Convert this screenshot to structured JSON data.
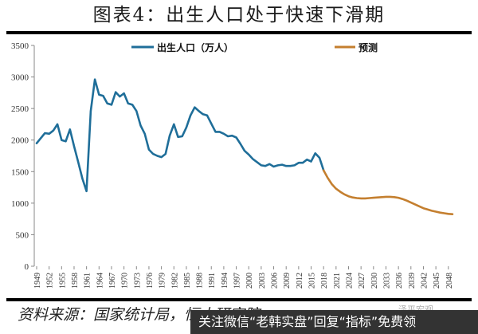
{
  "header": {
    "title": "图表4：出生人口处于快速下滑期"
  },
  "footer": {
    "source": "资料来源：国家统计局，恒大研究院",
    "faint_watermark": "泽平宏观",
    "banner_text": "关注微信“老韩实盘”回复“指标”免费领"
  },
  "colors": {
    "actual": "#1f6e99",
    "forecast": "#c47f2f"
  },
  "chart_data": {
    "type": "line",
    "title": "图表4：出生人口处于快速下滑期",
    "xlabel": "",
    "ylabel": "",
    "ylim": [
      0,
      3500
    ],
    "yticks": [
      0,
      500,
      1000,
      1500,
      2000,
      2500,
      3000,
      3500
    ],
    "xticks": [
      "1949",
      "1952",
      "1955",
      "1958",
      "1961",
      "1964",
      "1967",
      "1970",
      "1973",
      "1976",
      "1979",
      "1982",
      "1985",
      "1988",
      "1991",
      "1994",
      "1997",
      "2000",
      "2003",
      "2006",
      "2009",
      "2012",
      "2015",
      "2018",
      "2021",
      "2024",
      "2027",
      "2030",
      "2033",
      "2036",
      "2039",
      "2042",
      "2045",
      "2048"
    ],
    "xlim": [
      1949,
      2050
    ],
    "grid": false,
    "legend_position": "top",
    "series": [
      {
        "name": "出生人口（万人）",
        "color": "#1f6e99",
        "x": [
          1949,
          1950,
          1951,
          1952,
          1953,
          1954,
          1955,
          1956,
          1957,
          1958,
          1959,
          1960,
          1961,
          1962,
          1963,
          1964,
          1965,
          1966,
          1967,
          1968,
          1969,
          1970,
          1971,
          1972,
          1973,
          1974,
          1975,
          1976,
          1977,
          1978,
          1979,
          1980,
          1981,
          1982,
          1983,
          1984,
          1985,
          1986,
          1987,
          1988,
          1989,
          1990,
          1991,
          1992,
          1993,
          1994,
          1995,
          1996,
          1997,
          1998,
          1999,
          2000,
          2001,
          2002,
          2003,
          2004,
          2005,
          2006,
          2007,
          2008,
          2009,
          2010,
          2011,
          2012,
          2013,
          2014,
          2015,
          2016,
          2017,
          2018
        ],
        "values": [
          1950,
          2030,
          2110,
          2100,
          2150,
          2250,
          2000,
          1980,
          2170,
          1900,
          1650,
          1390,
          1190,
          2460,
          2960,
          2720,
          2700,
          2580,
          2560,
          2760,
          2690,
          2740,
          2580,
          2560,
          2460,
          2230,
          2100,
          1850,
          1780,
          1750,
          1730,
          1780,
          2070,
          2250,
          2050,
          2060,
          2200,
          2390,
          2520,
          2460,
          2410,
          2390,
          2260,
          2130,
          2130,
          2100,
          2060,
          2070,
          2040,
          1940,
          1830,
          1770,
          1700,
          1650,
          1600,
          1590,
          1620,
          1580,
          1600,
          1610,
          1590,
          1590,
          1600,
          1640,
          1640,
          1690,
          1660,
          1790,
          1720,
          1520
        ]
      },
      {
        "name": "预测",
        "color": "#c47f2f",
        "x": [
          2018,
          2019,
          2020,
          2021,
          2022,
          2023,
          2024,
          2025,
          2026,
          2027,
          2028,
          2029,
          2030,
          2031,
          2032,
          2033,
          2034,
          2035,
          2036,
          2037,
          2038,
          2039,
          2040,
          2041,
          2042,
          2043,
          2044,
          2045,
          2046,
          2047,
          2048,
          2049
        ],
        "values": [
          1520,
          1400,
          1300,
          1230,
          1180,
          1140,
          1110,
          1090,
          1080,
          1075,
          1075,
          1080,
          1085,
          1090,
          1095,
          1100,
          1100,
          1095,
          1085,
          1065,
          1040,
          1010,
          980,
          950,
          920,
          900,
          880,
          865,
          850,
          840,
          830,
          825
        ]
      }
    ]
  },
  "legend": [
    {
      "label": "出生人口（万人）"
    },
    {
      "label": "预测"
    }
  ]
}
